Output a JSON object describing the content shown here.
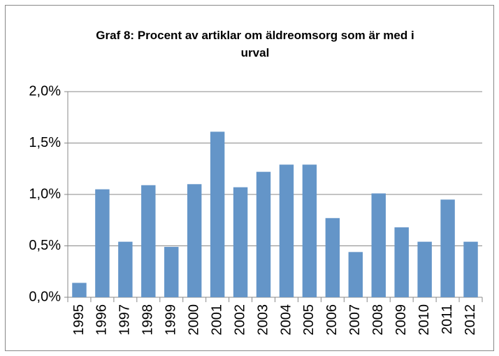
{
  "chart_data": {
    "type": "bar",
    "title": "Graf 8: Procent av artiklar om äldreomsorg som är med i urval",
    "categories": [
      "1995",
      "1996",
      "1997",
      "1998",
      "1999",
      "2000",
      "2001",
      "2002",
      "2003",
      "2004",
      "2005",
      "2006",
      "2007",
      "2008",
      "2009",
      "2010",
      "2011",
      "2012"
    ],
    "values": [
      0.14,
      1.05,
      0.54,
      1.09,
      0.49,
      1.1,
      1.61,
      1.07,
      1.22,
      1.29,
      1.29,
      0.77,
      0.44,
      1.01,
      0.68,
      0.54,
      0.95,
      0.54
    ],
    "color": "#6495c8",
    "ylim": [
      0,
      2.0
    ],
    "yticks": [
      {
        "value": 0,
        "label": "0,0%"
      },
      {
        "value": 0.5,
        "label": "0,5%"
      },
      {
        "value": 1.0,
        "label": "1,0%"
      },
      {
        "value": 1.5,
        "label": "1,5%"
      },
      {
        "value": 2.0,
        "label": "2,0%"
      }
    ],
    "grid": true
  }
}
